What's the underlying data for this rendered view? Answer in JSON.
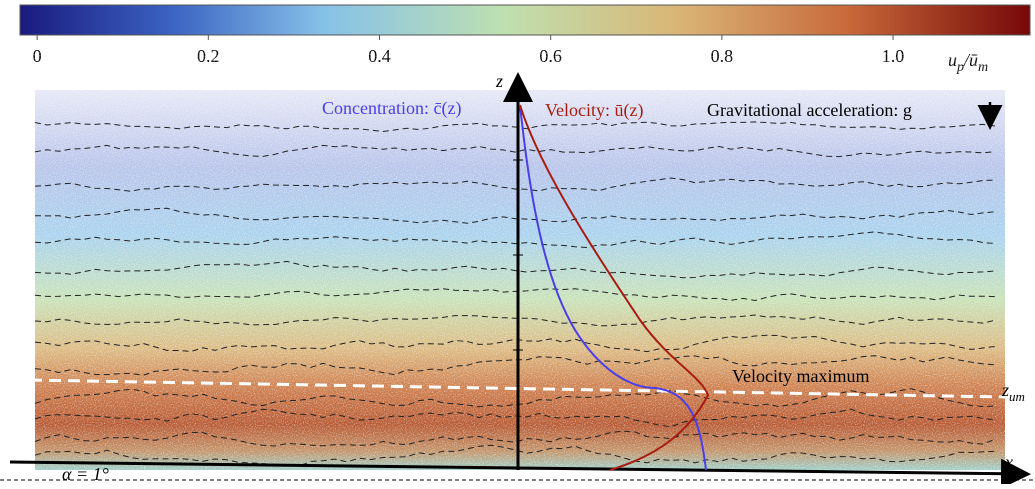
{
  "colorbar": {
    "ticks": [
      0,
      0.2,
      0.4,
      0.6,
      0.8,
      {
        "value": 1,
        "label": "1.0"
      }
    ],
    "lim": [
      -0.02,
      1.16
    ],
    "label": [
      "u",
      "p",
      "/ū",
      "m"
    ]
  },
  "labels": {
    "z_axis": "z",
    "x_axis": "x",
    "concentration": "Concentration: c̄(z)",
    "velocity": "Velocity: ū(z)",
    "gravity": "Gravitational acceleration: g",
    "velocity_maximum": "Velocity maximum",
    "z_um": [
      "z",
      "um"
    ],
    "slope": "α = 1°"
  }
}
